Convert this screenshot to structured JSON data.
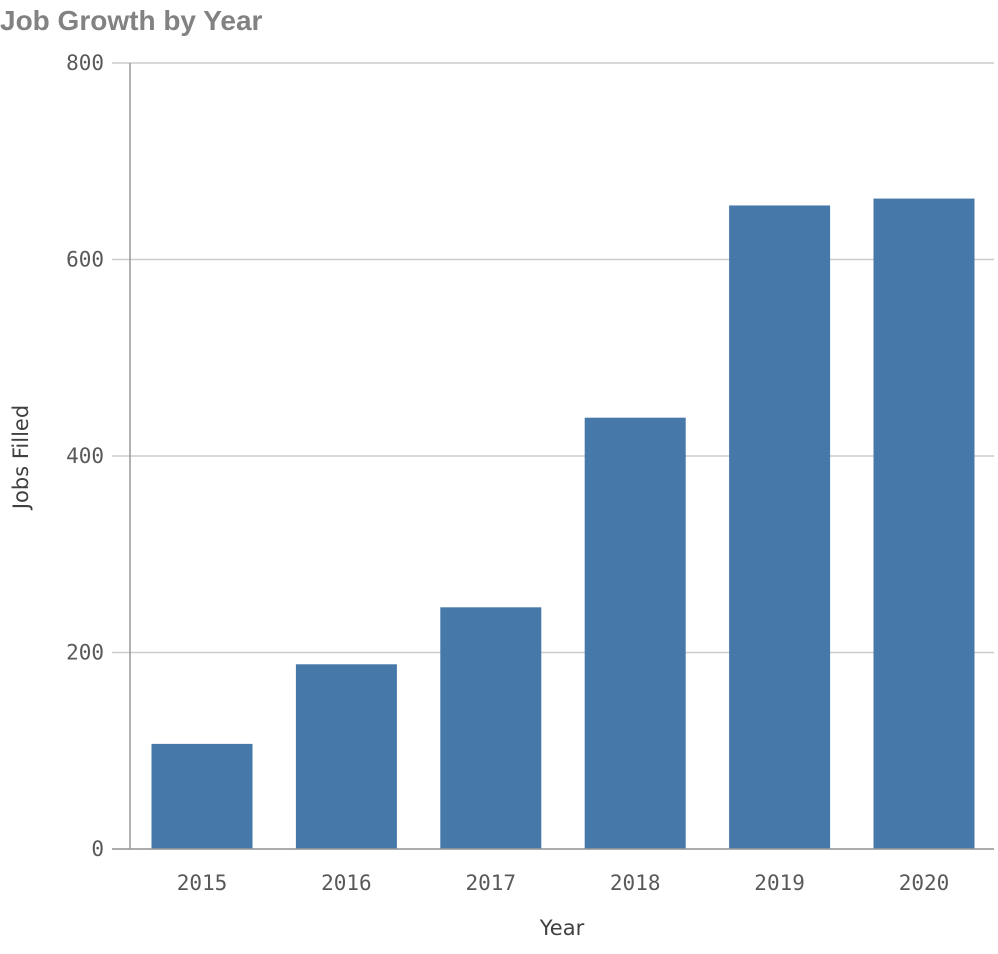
{
  "chart_data": {
    "type": "bar",
    "title": "Job Growth by Year",
    "xlabel": "Year",
    "ylabel": "Jobs Filled",
    "categories": [
      "2015",
      "2016",
      "2017",
      "2018",
      "2019",
      "2020"
    ],
    "values": [
      107,
      188,
      246,
      439,
      655,
      662
    ],
    "ylim": [
      0,
      800
    ],
    "yticks": [
      0,
      200,
      400,
      600,
      800
    ],
    "grid": true,
    "legend": "none",
    "bar_color": "#4678aa"
  }
}
